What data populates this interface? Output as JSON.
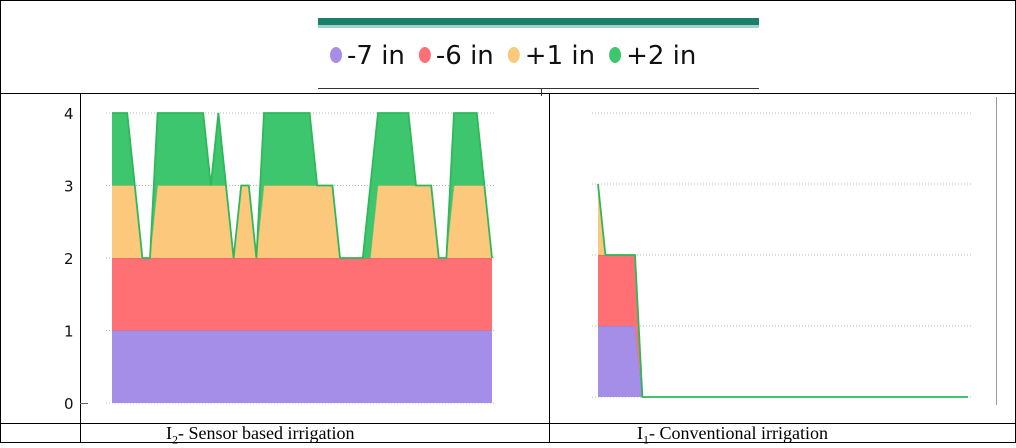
{
  "legend": {
    "items": [
      {
        "label": "-7 in",
        "color": "#a58ee8"
      },
      {
        "label": "-6 in",
        "color": "#ff7075"
      },
      {
        "label": "+1 in",
        "color": "#fbc87c"
      },
      {
        "label": "+2 in",
        "color": "#3ec66e"
      }
    ],
    "header_bar_color": "#1c7f6c"
  },
  "captions": {
    "left": {
      "prefix": "I",
      "sub": "2",
      "rest": "- Sensor based irrigation"
    },
    "right": {
      "prefix": "I",
      "sub": "1",
      "rest": "- Conventional irrigation"
    }
  },
  "chart_data": [
    {
      "type": "area",
      "stacked": true,
      "ylim": [
        0,
        4
      ],
      "yticks": [
        "0",
        "1",
        "2",
        "3",
        "4"
      ],
      "xlim": [
        0,
        100
      ],
      "grid": true,
      "line_color": "#2fb85a",
      "x": [
        0,
        2,
        4,
        6,
        8,
        10,
        12,
        14,
        16,
        18,
        20,
        22,
        24,
        26,
        28,
        30,
        32,
        34,
        36,
        38,
        40,
        42,
        44,
        46,
        48,
        50,
        52,
        54,
        56,
        58,
        60,
        62,
        64,
        66,
        68,
        70,
        72,
        74,
        76,
        78,
        80,
        82,
        84,
        86,
        88,
        90,
        92,
        94,
        96,
        98,
        100
      ],
      "series": [
        {
          "name": "-7 in",
          "color": "#a58ee8",
          "values": [
            1,
            1,
            1,
            1,
            1,
            1,
            1,
            1,
            1,
            1,
            1,
            1,
            1,
            1,
            1,
            1,
            1,
            1,
            1,
            1,
            1,
            1,
            1,
            1,
            1,
            1,
            1,
            1,
            1,
            1,
            1,
            1,
            1,
            1,
            1,
            1,
            1,
            1,
            1,
            1,
            1,
            1,
            1,
            1,
            1,
            1,
            1,
            1,
            1,
            1,
            1
          ]
        },
        {
          "name": "-6 in",
          "color": "#ff7075",
          "values": [
            1,
            1,
            1,
            1,
            1,
            1,
            1,
            1,
            1,
            1,
            1,
            1,
            1,
            1,
            1,
            1,
            1,
            1,
            1,
            1,
            1,
            1,
            1,
            1,
            1,
            1,
            1,
            1,
            1,
            1,
            1,
            1,
            1,
            1,
            1,
            1,
            1,
            1,
            1,
            1,
            1,
            1,
            1,
            1,
            1,
            1,
            1,
            1,
            1,
            1,
            1
          ]
        },
        {
          "name": "+1 in",
          "color": "#fbc87c",
          "values": [
            1,
            1,
            1,
            1,
            0,
            0,
            1,
            1,
            1,
            1,
            1,
            1,
            1,
            1,
            1,
            1,
            0,
            1,
            1,
            0,
            1,
            1,
            1,
            1,
            1,
            1,
            1,
            1,
            1,
            1,
            0,
            0,
            0,
            0,
            0,
            1,
            1,
            1,
            1,
            1,
            1,
            1,
            1,
            0,
            0,
            1,
            1,
            1,
            1,
            1,
            0
          ]
        },
        {
          "name": "+2 in",
          "color": "#3ec66e",
          "values": [
            1,
            1,
            1,
            0,
            0,
            0,
            1,
            1,
            1,
            1,
            1,
            1,
            1,
            0,
            1,
            0,
            0,
            0,
            0,
            0,
            1,
            1,
            1,
            1,
            1,
            1,
            1,
            0,
            0,
            0,
            0,
            0,
            0,
            0,
            1,
            1,
            1,
            1,
            1,
            1,
            0,
            0,
            0,
            0,
            0,
            1,
            1,
            1,
            1,
            0,
            0
          ]
        }
      ]
    },
    {
      "type": "area",
      "stacked": true,
      "ylim": [
        0,
        4
      ],
      "xlim": [
        0,
        100
      ],
      "grid": true,
      "line_color": "#2fb85a",
      "x": [
        0,
        2,
        4,
        6,
        8,
        10,
        12,
        14,
        16,
        18,
        20,
        22,
        24,
        26,
        28,
        30,
        32,
        34,
        36,
        38,
        40,
        42,
        44,
        46,
        48,
        50,
        52,
        54,
        56,
        58,
        60,
        62,
        64,
        66,
        68,
        70,
        72,
        74,
        76,
        78,
        80,
        82,
        84,
        86,
        88,
        90,
        92,
        94,
        96,
        98,
        100
      ],
      "series": [
        {
          "name": "-7 in",
          "color": "#a58ee8",
          "values": [
            1,
            1,
            1,
            1,
            1,
            1,
            0,
            0,
            0,
            0,
            0,
            0,
            0,
            0,
            0,
            0,
            0,
            0,
            0,
            0,
            0,
            0,
            0,
            0,
            0,
            0,
            0,
            0,
            0,
            0,
            0,
            0,
            0,
            0,
            0,
            0,
            0,
            0,
            0,
            0,
            0,
            0,
            0,
            0,
            0,
            0,
            0,
            0,
            0,
            0,
            0
          ]
        },
        {
          "name": "-6 in",
          "color": "#ff7075",
          "values": [
            1,
            1,
            1,
            1,
            1,
            1,
            0,
            0,
            0,
            0,
            0,
            0,
            0,
            0,
            0,
            0,
            0,
            0,
            0,
            0,
            0,
            0,
            0,
            0,
            0,
            0,
            0,
            0,
            0,
            0,
            0,
            0,
            0,
            0,
            0,
            0,
            0,
            0,
            0,
            0,
            0,
            0,
            0,
            0,
            0,
            0,
            0,
            0,
            0,
            0,
            0
          ]
        },
        {
          "name": "+1 in",
          "color": "#fbc87c",
          "values": [
            1,
            0,
            0,
            0,
            0,
            0,
            0,
            0,
            0,
            0,
            0,
            0,
            0,
            0,
            0,
            0,
            0,
            0,
            0,
            0,
            0,
            0,
            0,
            0,
            0,
            0,
            0,
            0,
            0,
            0,
            0,
            0,
            0,
            0,
            0,
            0,
            0,
            0,
            0,
            0,
            0,
            0,
            0,
            0,
            0,
            0,
            0,
            0,
            0,
            0,
            0
          ]
        },
        {
          "name": "+2 in",
          "color": "#3ec66e",
          "values": [
            0,
            0,
            0,
            0,
            0,
            0,
            0,
            0,
            0,
            0,
            0,
            0,
            0,
            0,
            0,
            0,
            0,
            0,
            0,
            0,
            0,
            0,
            0,
            0,
            0,
            0,
            0,
            0,
            0,
            0,
            0,
            0,
            0,
            0,
            0,
            0,
            0,
            0,
            0,
            0,
            0,
            0,
            0,
            0,
            0,
            0,
            0,
            0,
            0,
            0,
            0
          ]
        }
      ]
    }
  ]
}
